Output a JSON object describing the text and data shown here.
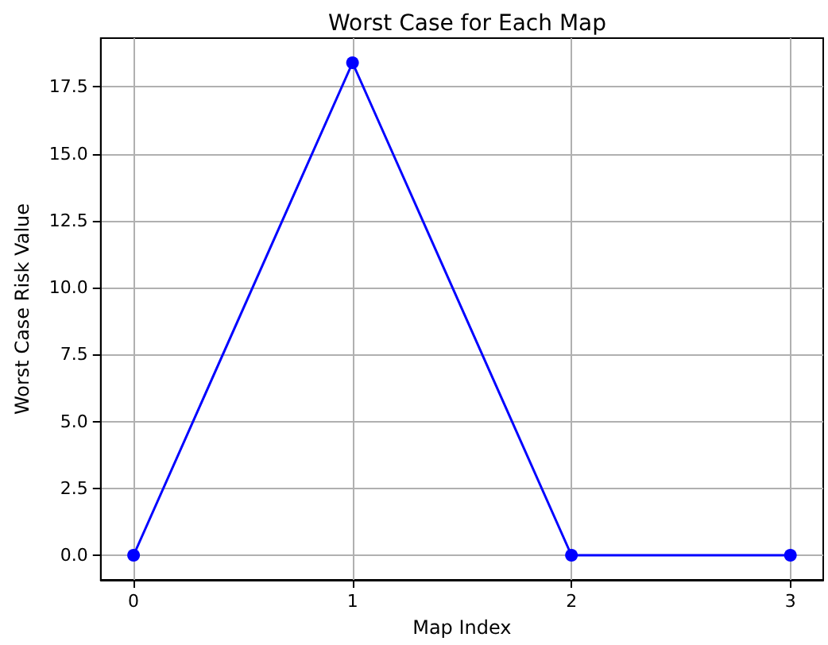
{
  "chart_data": {
    "type": "line",
    "title": "Worst Case for Each Map",
    "xlabel": "Map Index",
    "ylabel": "Worst Case Risk Value",
    "x": [
      0,
      1,
      2,
      3
    ],
    "series": [
      {
        "color": "#0000ff",
        "values": [
          0,
          18.4,
          0,
          0
        ]
      }
    ],
    "xlim": [
      -0.15,
      3.15
    ],
    "xticks": [
      0,
      1,
      2,
      3
    ],
    "ylim": [
      -0.92,
      19.32
    ],
    "yticks": [
      {
        "value": 0,
        "label": "0.0"
      },
      {
        "value": 2.5,
        "label": "2.5"
      },
      {
        "value": 5,
        "label": "5.0"
      },
      {
        "value": 7.5,
        "label": "7.5"
      },
      {
        "value": 10,
        "label": "10.0"
      },
      {
        "value": 12.5,
        "label": "12.5"
      },
      {
        "value": 15,
        "label": "15.0"
      },
      {
        "value": 17.5,
        "label": "17.5"
      }
    ],
    "grid": true,
    "marker": "circle",
    "line_style": "solid"
  }
}
